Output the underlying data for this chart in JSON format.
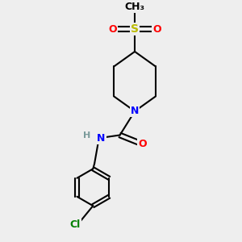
{
  "bg_color": "#eeeeee",
  "bond_color": "#000000",
  "bond_width": 1.5,
  "atom_colors": {
    "N": "#0000ff",
    "O": "#ff0000",
    "S": "#bbbb00",
    "Cl": "#008000",
    "H": "#7a9a9a",
    "C": "#000000"
  },
  "font_size": 9,
  "fig_width": 3.0,
  "fig_height": 3.0,
  "dpi": 100,
  "xlim": [
    -1.8,
    2.2
  ],
  "ylim": [
    -2.8,
    2.2
  ]
}
